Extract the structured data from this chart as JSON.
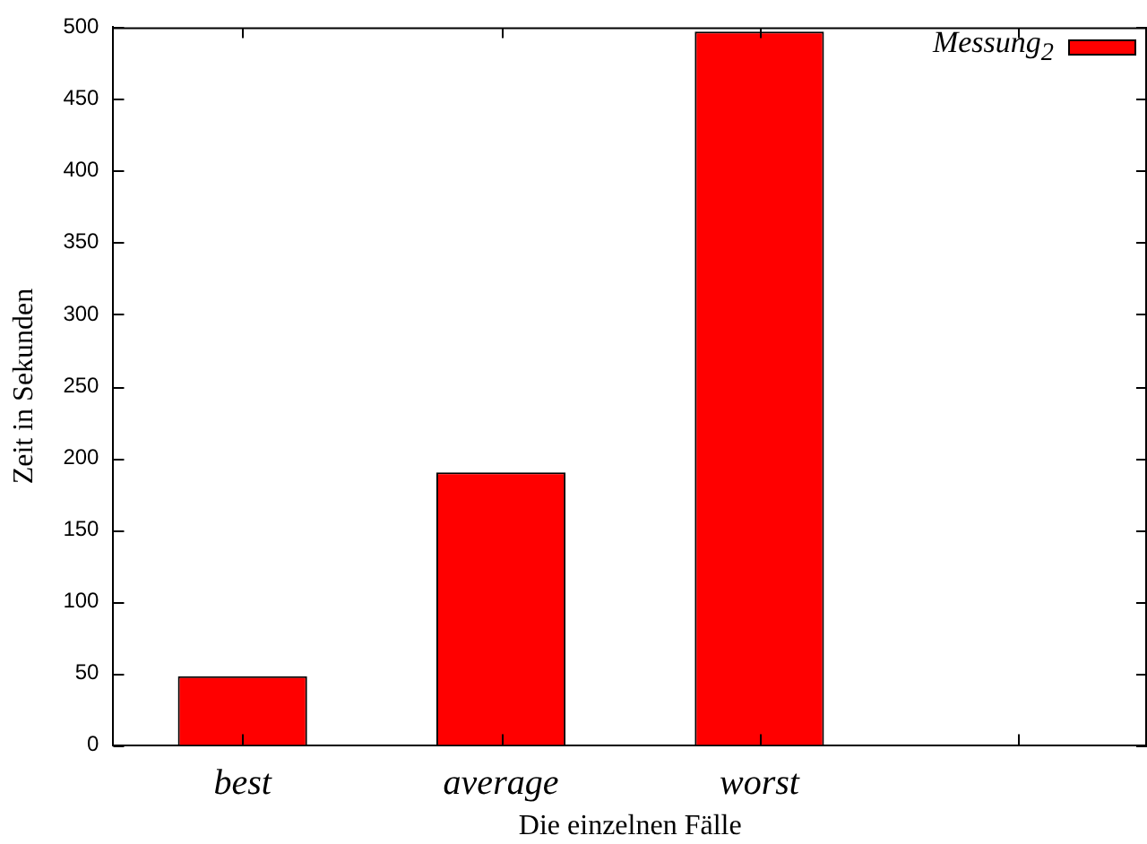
{
  "chart_data": {
    "type": "bar",
    "xlabel": "Die einzelnen Fälle",
    "ylabel": "Zeit in Sekunden",
    "categories": [
      "best",
      "average",
      "worst",
      null
    ],
    "series": [
      {
        "name": "Messung$_{2}$",
        "color": "#ff0000",
        "values": [
          48,
          190,
          497,
          null
        ]
      }
    ],
    "ylim": [
      0,
      500
    ],
    "yticks": [
      0,
      50,
      100,
      150,
      200,
      250,
      300,
      350,
      400,
      450,
      500
    ],
    "grid": false,
    "legend": "top right"
  }
}
